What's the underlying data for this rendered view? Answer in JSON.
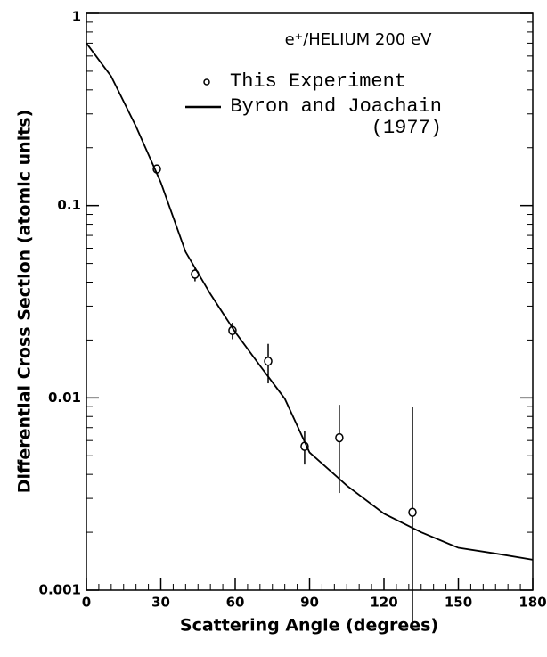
{
  "chart_data": {
    "type": "scatter",
    "annotation": "e⁺/HELIUM 200 eV",
    "xlabel": "Scattering Angle (degrees)",
    "ylabel": "Differential Cross Section (atomic units)",
    "xlim": [
      0,
      180
    ],
    "xticks": [
      0,
      30,
      60,
      90,
      120,
      150,
      180
    ],
    "ylim": [
      0.001,
      1
    ],
    "yticks": [
      0.001,
      0.01,
      0.1,
      1
    ],
    "log_y": true,
    "grid": false,
    "legend": "upper right",
    "series": [
      {
        "name": "This Experiment",
        "type": "scatter",
        "color": "#000000",
        "x": [
          28.4,
          43.8,
          58.9,
          73.3,
          88,
          102,
          131.5
        ],
        "values": [
          0.155,
          0.044,
          0.0224,
          0.0155,
          0.0056,
          0.0062,
          0.00254
        ],
        "errors": [
          0.008,
          0.0036,
          0.0022,
          0.0036,
          0.0011,
          0.003,
          0.0064
        ]
      },
      {
        "name": "Byron and Joachain (1977)",
        "type": "line",
        "color": "#000000",
        "x": [
          0,
          10,
          20,
          30,
          40,
          50,
          60,
          70,
          80,
          90,
          105,
          120,
          135,
          150,
          165,
          180
        ],
        "values": [
          0.7,
          0.47,
          0.258,
          0.132,
          0.0574,
          0.0347,
          0.022,
          0.0147,
          0.0099,
          0.0052,
          0.0035,
          0.0025,
          0.002,
          0.00166,
          0.00155,
          0.00144
        ]
      }
    ]
  }
}
